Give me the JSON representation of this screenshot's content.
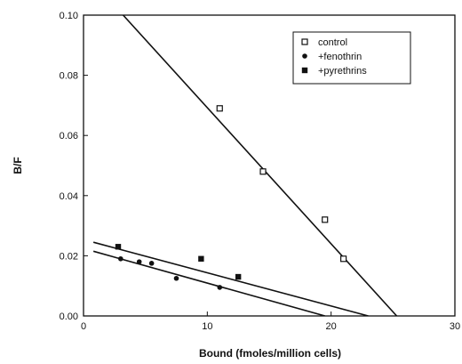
{
  "chart_data": {
    "type": "scatter",
    "title": "",
    "xlabel": "Bound (fmoles/million cells)",
    "ylabel": "B/F",
    "xlim": [
      0,
      30
    ],
    "ylim": [
      0,
      0.1
    ],
    "xticks": [
      0,
      10,
      20,
      30
    ],
    "yticks": [
      0.0,
      0.02,
      0.04,
      0.06,
      0.08,
      0.1
    ],
    "xtick_labels": [
      "0",
      "10",
      "20",
      "30"
    ],
    "ytick_labels": [
      "0.00",
      "0.02",
      "0.04",
      "0.06",
      "0.08",
      "0.10"
    ],
    "grid": false,
    "legend_position": "top-right",
    "series": [
      {
        "name": "control",
        "marker": "open-square",
        "points": [
          [
            11.0,
            0.069
          ],
          [
            14.5,
            0.048
          ],
          [
            19.5,
            0.032
          ],
          [
            21.0,
            0.019
          ]
        ],
        "fit_line": [
          [
            3.2,
            0.1
          ],
          [
            25.3,
            0.0
          ]
        ]
      },
      {
        "name": "+fenothrin",
        "marker": "filled-circle",
        "points": [
          [
            3.0,
            0.019
          ],
          [
            4.5,
            0.018
          ],
          [
            5.5,
            0.0175
          ],
          [
            7.5,
            0.0125
          ],
          [
            11.0,
            0.0095
          ]
        ],
        "fit_line": [
          [
            0.8,
            0.0215
          ],
          [
            19.5,
            0.0
          ]
        ]
      },
      {
        "name": "+pyrethrins",
        "marker": "filled-square",
        "points": [
          [
            2.8,
            0.023
          ],
          [
            9.5,
            0.019
          ],
          [
            12.5,
            0.013
          ]
        ],
        "fit_line": [
          [
            0.8,
            0.0245
          ],
          [
            23.0,
            0.0
          ]
        ]
      }
    ],
    "colors": {
      "ink": "#111111"
    }
  }
}
